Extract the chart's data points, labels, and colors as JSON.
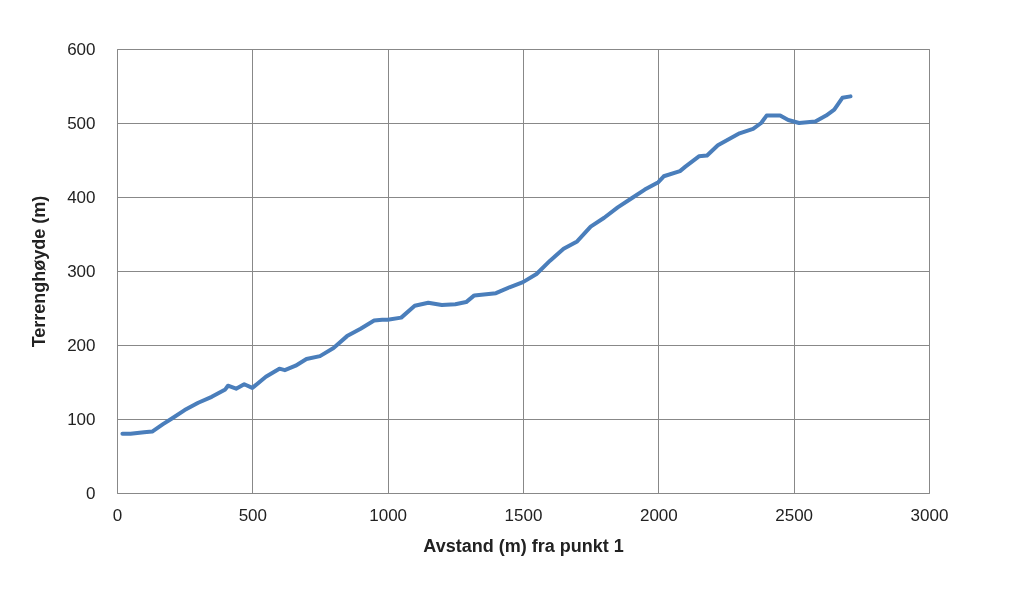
{
  "chart_data": {
    "type": "line",
    "xlabel": "Avstand (m) fra punkt 1",
    "ylabel": "Terrenghøyde (m)",
    "xlim": [
      0,
      3000
    ],
    "xticks": [
      0,
      500,
      1000,
      1500,
      2000,
      2500,
      3000
    ],
    "ylim": [
      0,
      600
    ],
    "yticks": [
      0,
      100,
      200,
      300,
      400,
      500,
      600
    ],
    "grid": true,
    "legend": false,
    "marker": "none",
    "line_style": "solid",
    "x": [
      20,
      50,
      100,
      130,
      170,
      200,
      250,
      300,
      350,
      400,
      410,
      440,
      470,
      500,
      550,
      600,
      620,
      660,
      700,
      750,
      800,
      850,
      900,
      950,
      980,
      1000,
      1050,
      1100,
      1150,
      1200,
      1250,
      1290,
      1320,
      1400,
      1450,
      1500,
      1550,
      1600,
      1650,
      1700,
      1750,
      1800,
      1850,
      1900,
      1950,
      2000,
      2020,
      2080,
      2100,
      2150,
      2180,
      2220,
      2300,
      2350,
      2380,
      2400,
      2450,
      2480,
      2520,
      2580,
      2620,
      2650,
      2680,
      2710
    ],
    "series": [
      {
        "color": "#4a7ebb",
        "values": [
          80,
          80,
          82,
          83,
          93,
          100,
          112,
          122,
          130,
          140,
          145,
          141,
          147,
          142,
          157,
          168,
          166,
          172,
          181,
          185,
          196,
          212,
          222,
          233,
          234,
          234,
          237,
          253,
          257,
          254,
          255,
          258,
          267,
          270,
          278,
          285,
          296,
          314,
          330,
          340,
          360,
          372,
          386,
          398,
          410,
          420,
          428,
          435,
          441,
          455,
          456,
          470,
          486,
          492,
          500,
          510,
          510,
          504,
          500,
          502,
          510,
          518,
          534,
          536
        ]
      }
    ]
  }
}
